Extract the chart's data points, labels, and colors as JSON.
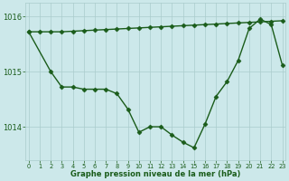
{
  "title": "Graphe pression niveau de la mer (hPa)",
  "bg_color": "#cce8ea",
  "grid_color": "#aacccc",
  "line_color": "#1a5c1a",
  "line1_x": [
    0,
    1,
    2,
    3,
    4,
    5,
    6,
    7,
    8,
    9,
    10,
    11,
    12,
    13,
    14,
    15,
    16,
    17,
    18,
    19,
    20,
    21,
    22,
    23
  ],
  "line1_y": [
    1015.72,
    1015.72,
    1015.72,
    1015.72,
    1015.73,
    1015.74,
    1015.75,
    1015.76,
    1015.77,
    1015.78,
    1015.79,
    1015.8,
    1015.81,
    1015.82,
    1015.83,
    1015.84,
    1015.85,
    1015.86,
    1015.87,
    1015.88,
    1015.89,
    1015.9,
    1015.91,
    1015.92
  ],
  "line2_x": [
    0,
    2,
    3,
    4,
    5,
    6,
    7,
    8,
    9,
    10,
    11,
    12,
    13,
    14,
    15,
    16,
    17,
    18,
    19,
    20,
    21,
    22,
    23
  ],
  "line2_y": [
    1015.72,
    1015.0,
    1014.72,
    1014.72,
    1014.68,
    1014.68,
    1014.68,
    1014.6,
    1014.32,
    1013.9,
    1014.0,
    1014.0,
    1013.85,
    1013.72,
    1013.62,
    1014.05,
    1014.55,
    1014.82,
    1015.2,
    1015.78,
    1015.95,
    1015.85,
    1015.12
  ],
  "yticks": [
    1014,
    1015,
    1016
  ],
  "xticks": [
    0,
    1,
    2,
    3,
    4,
    5,
    6,
    7,
    8,
    9,
    10,
    11,
    12,
    13,
    14,
    15,
    16,
    17,
    18,
    19,
    20,
    21,
    22,
    23
  ],
  "xlim": [
    -0.3,
    23.3
  ],
  "ylim": [
    1013.4,
    1016.25
  ],
  "tick_color": "#1a5c1a",
  "marker": "D",
  "markersize": 2.5,
  "linewidth": 1.0,
  "title_fontsize": 6.0,
  "ytick_fontsize": 6.0,
  "xtick_fontsize": 4.8
}
